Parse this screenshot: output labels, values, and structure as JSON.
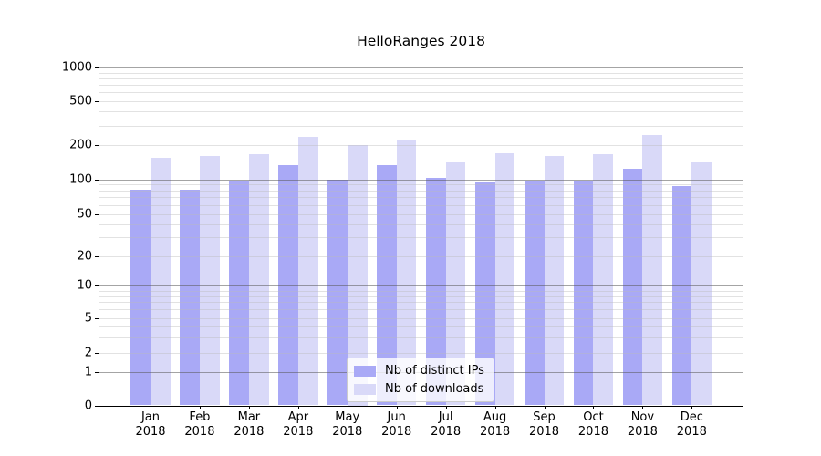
{
  "chart_data": {
    "type": "bar",
    "title": "HelloRanges 2018",
    "xlabel": "",
    "ylabel": "",
    "yscale": "symlog",
    "ylim": [
      0,
      1260
    ],
    "yticks": [
      0,
      1,
      2,
      5,
      10,
      20,
      50,
      100,
      200,
      500,
      1000
    ],
    "grid": "both",
    "legend_position": "lower center",
    "categories": [
      "Jan 2018",
      "Feb 2018",
      "Mar 2018",
      "Apr 2018",
      "May 2018",
      "Jun 2018",
      "Jul 2018",
      "Aug 2018",
      "Sep 2018",
      "Oct 2018",
      "Nov 2018",
      "Dec 2018"
    ],
    "series": [
      {
        "name": "Nb of distinct IPs",
        "color": "#a9a9f6",
        "values": [
          82,
          81,
          95,
          133,
          99,
          134,
          104,
          94,
          96,
          97,
          124,
          88
        ]
      },
      {
        "name": "Nb of downloads",
        "color": "#d9d9f8",
        "values": [
          154,
          161,
          167,
          237,
          200,
          218,
          140,
          168,
          160,
          165,
          245,
          142
        ]
      }
    ]
  }
}
